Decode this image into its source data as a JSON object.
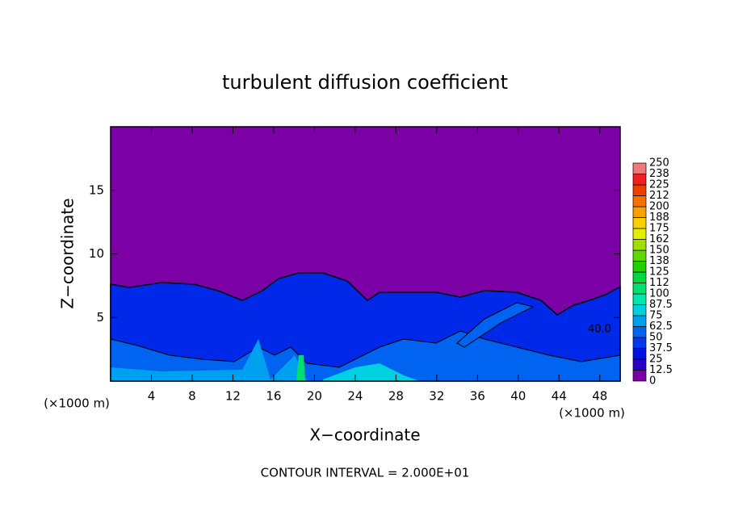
{
  "chart_data": {
    "type": "contour",
    "title": "turbulent diffusion coefficient",
    "xlabel": "X−coordinate",
    "ylabel": "Z−coordinate",
    "x_unit": "(×1000 m)",
    "footnote": "CONTOUR INTERVAL = 2.000E+01",
    "annotations": [
      "40.0"
    ],
    "xlim": [
      0,
      50
    ],
    "xticks": [
      4,
      8,
      12,
      16,
      20,
      24,
      28,
      32,
      36,
      40,
      44,
      48
    ],
    "ylim": [
      0,
      20
    ],
    "yticks": [
      5,
      10,
      15
    ],
    "levels": [
      0,
      12.5,
      25,
      37.5,
      50,
      62.5,
      75,
      87.5,
      100,
      {
        "value": 112.5,
        "label": "112"
      },
      125,
      {
        "value": 137.5,
        "label": "138"
      },
      150,
      {
        "value": 162.5,
        "label": "162"
      },
      175,
      {
        "value": 187.5,
        "label": "188"
      },
      200,
      {
        "value": 212.5,
        "label": "212"
      },
      225,
      {
        "value": 237.5,
        "label": "238"
      },
      250
    ],
    "colors": [
      "#7b00a6",
      "#2a00c8",
      "#0010e0",
      "#0038f0",
      "#0064f0",
      "#00a0f0",
      "#00d0e0",
      "#00e8b0",
      "#00e070",
      "#00d840",
      "#20d000",
      "#60d800",
      "#a0e000",
      "#e0f000",
      "#f8d000",
      "#f8a000",
      "#f87000",
      "#f04000",
      "#f02020",
      "#f07878"
    ]
  }
}
